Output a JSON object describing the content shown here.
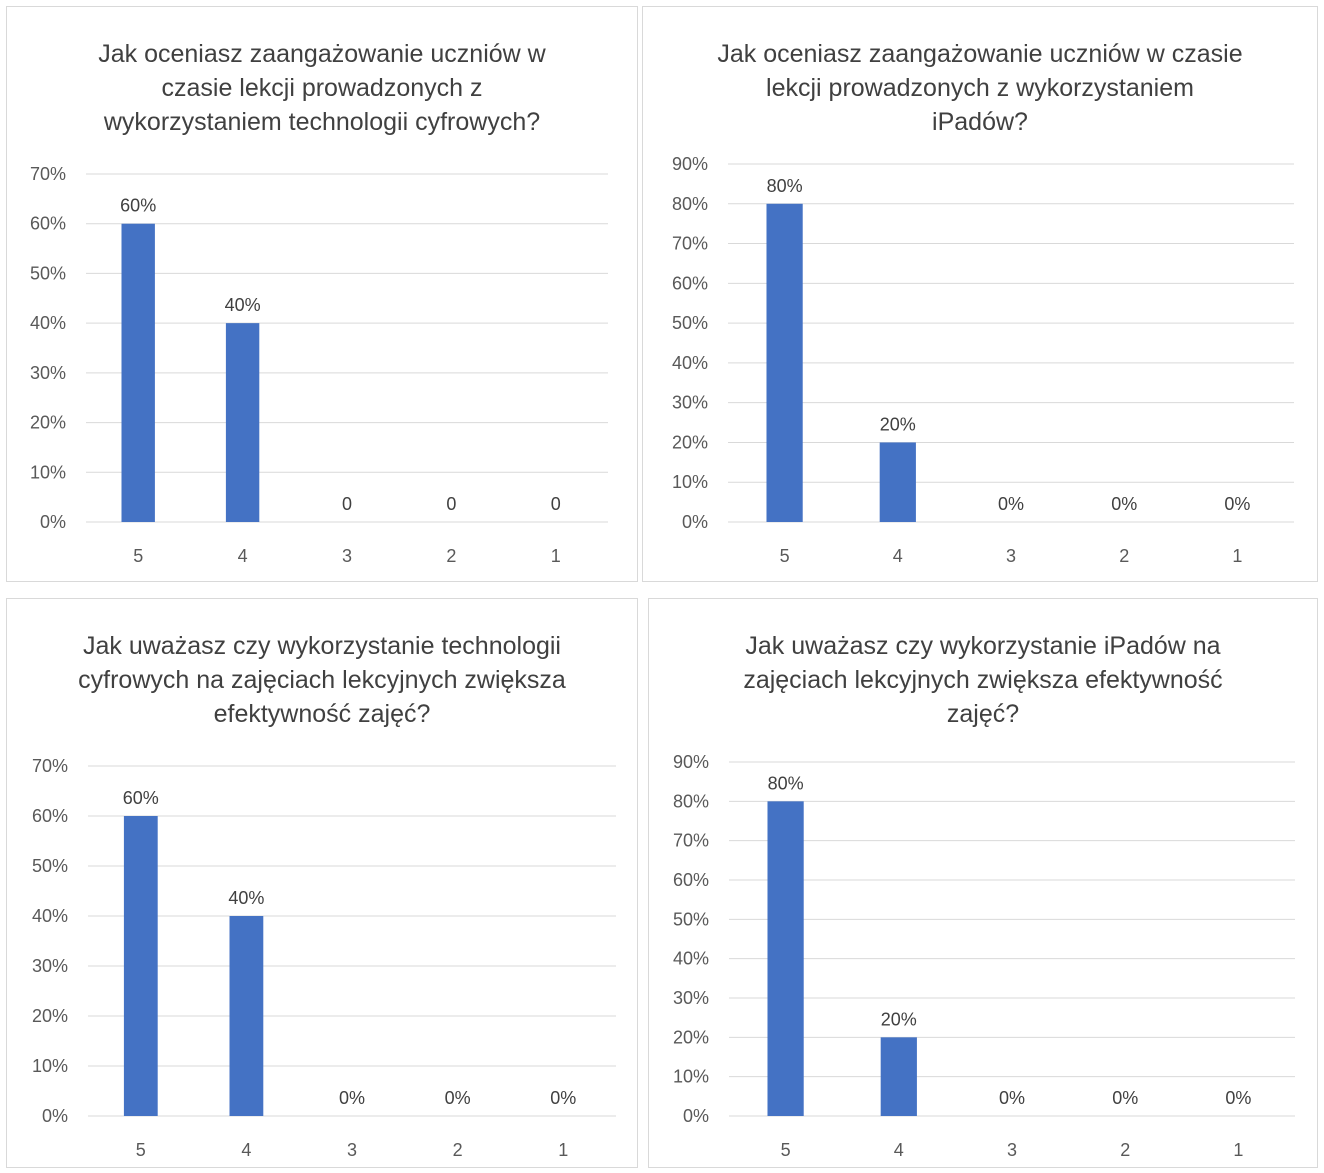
{
  "colors": {
    "bar": "#4472c4",
    "grid": "#d9d9d9",
    "axis_text": "#595959",
    "title": "#404040"
  },
  "chart_data": [
    {
      "type": "bar",
      "title": "Jak oceniasz zaangażowanie uczniów w\nczasie lekcji prowadzonych z\nwykorzystaniem technologii cyfrowych?",
      "categories": [
        "5",
        "4",
        "3",
        "2",
        "1"
      ],
      "values": [
        0.6,
        0.4,
        0,
        0,
        0
      ],
      "data_labels": [
        "60%",
        "40%",
        "0",
        "0",
        "0"
      ],
      "ylim": [
        0,
        0.7
      ],
      "y_ticks": [
        "0%",
        "10%",
        "20%",
        "30%",
        "40%",
        "50%",
        "60%",
        "70%"
      ],
      "grid": true
    },
    {
      "type": "bar",
      "title": "Jak oceniasz zaangażowanie uczniów w czasie\nlekcji prowadzonych z wykorzystaniem\niPadów?",
      "categories": [
        "5",
        "4",
        "3",
        "2",
        "1"
      ],
      "values": [
        0.8,
        0.2,
        0,
        0,
        0
      ],
      "data_labels": [
        "80%",
        "20%",
        "0%",
        "0%",
        "0%"
      ],
      "ylim": [
        0,
        0.9
      ],
      "y_ticks": [
        "0%",
        "10%",
        "20%",
        "30%",
        "40%",
        "50%",
        "60%",
        "70%",
        "80%",
        "90%"
      ],
      "grid": true
    },
    {
      "type": "bar",
      "title": "Jak uważasz czy wykorzystanie technologii\ncyfrowych na zajęciach lekcyjnych zwiększa\nefektywność zajęć?",
      "categories": [
        "5",
        "4",
        "3",
        "2",
        "1"
      ],
      "values": [
        0.6,
        0.4,
        0,
        0,
        0
      ],
      "data_labels": [
        "60%",
        "40%",
        "0%",
        "0%",
        "0%"
      ],
      "ylim": [
        0,
        0.7
      ],
      "y_ticks": [
        "0%",
        "10%",
        "20%",
        "30%",
        "40%",
        "50%",
        "60%",
        "70%"
      ],
      "grid": true
    },
    {
      "type": "bar",
      "title": "Jak uważasz czy wykorzystanie iPadów na\nzajęciach lekcyjnych zwiększa efektywność\nzajęć?",
      "categories": [
        "5",
        "4",
        "3",
        "2",
        "1"
      ],
      "values": [
        0.8,
        0.2,
        0,
        0,
        0
      ],
      "data_labels": [
        "80%",
        "20%",
        "0%",
        "0%",
        "0%"
      ],
      "ylim": [
        0,
        0.9
      ],
      "y_ticks": [
        "0%",
        "10%",
        "20%",
        "30%",
        "40%",
        "50%",
        "60%",
        "70%",
        "80%",
        "90%"
      ],
      "grid": true
    }
  ]
}
